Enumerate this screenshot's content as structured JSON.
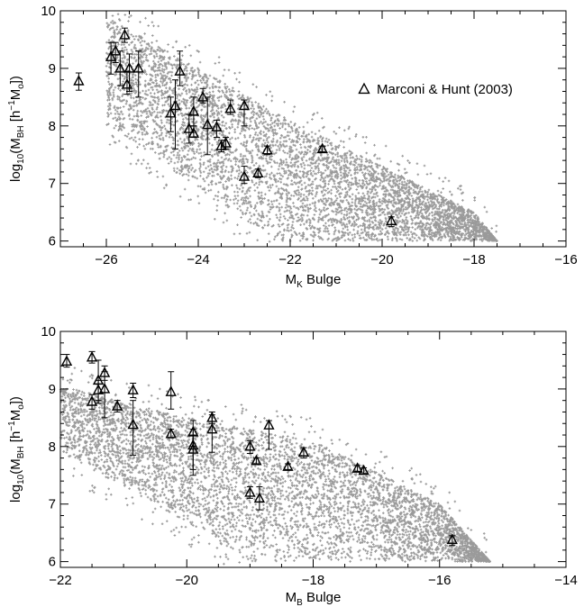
{
  "colors": {
    "model": "#9a9a9a",
    "observed": "#000000",
    "axis": "#000000"
  },
  "chart_data": [
    {
      "type": "scatter",
      "xlabel": "M_K Bulge",
      "ylabel": "log10(M_BH [h^-1 M_o])",
      "xlim": [
        -27,
        -16
      ],
      "ylim": [
        5.9,
        10.0
      ],
      "xticks": [
        -26,
        -24,
        -22,
        -20,
        -18,
        -16
      ],
      "yticks": [
        6,
        7,
        8,
        9,
        10
      ],
      "legend": {
        "position": "right",
        "marker": "triangle",
        "label": "Marconi & Hunt (2003)"
      },
      "model_cloud": {
        "name": "",
        "description_color": "gray",
        "upper_edge": [
          [
            -25.9,
            9.85
          ],
          [
            -22,
            8.1
          ],
          [
            -18,
            6.5
          ],
          [
            -17.5,
            6.0
          ]
        ],
        "lower_edge": [
          [
            -26,
            8.0
          ],
          [
            -24,
            6.9
          ],
          [
            -22.3,
            6.0
          ]
        ]
      },
      "series": [
        {
          "name": "Marconi & Hunt (2003)",
          "points": [
            {
              "x": -26.6,
              "y": 8.78,
              "lo": 8.62,
              "hi": 8.92
            },
            {
              "x": -25.9,
              "y": 9.2,
              "lo": 8.9,
              "hi": 9.45
            },
            {
              "x": -25.8,
              "y": 9.3,
              "lo": 9.1,
              "hi": 9.45
            },
            {
              "x": -25.7,
              "y": 9.0,
              "lo": 8.7,
              "hi": 9.3
            },
            {
              "x": -25.6,
              "y": 9.58,
              "lo": 9.45,
              "hi": 9.7
            },
            {
              "x": -25.55,
              "y": 8.72,
              "lo": 8.55,
              "hi": 8.95
            },
            {
              "x": -25.5,
              "y": 9.0,
              "lo": 8.6,
              "hi": 9.25
            },
            {
              "x": -25.3,
              "y": 9.0,
              "lo": 8.5,
              "hi": 9.3
            },
            {
              "x": -24.6,
              "y": 8.22,
              "lo": 7.9,
              "hi": 8.5
            },
            {
              "x": -24.5,
              "y": 8.35,
              "lo": 7.6,
              "hi": 8.8
            },
            {
              "x": -24.4,
              "y": 8.95,
              "lo": 8.7,
              "hi": 9.3
            },
            {
              "x": -24.2,
              "y": 7.95,
              "lo": 7.7,
              "hi": 8.2
            },
            {
              "x": -24.1,
              "y": 7.87,
              "lo": 7.8,
              "hi": 8.0
            },
            {
              "x": -24.1,
              "y": 8.25,
              "lo": 8.0,
              "hi": 8.5
            },
            {
              "x": -23.9,
              "y": 8.5,
              "lo": 8.4,
              "hi": 8.65
            },
            {
              "x": -23.8,
              "y": 8.02,
              "lo": 7.5,
              "hi": 8.5
            },
            {
              "x": -23.6,
              "y": 7.98,
              "lo": 7.8,
              "hi": 8.1
            },
            {
              "x": -23.5,
              "y": 7.65,
              "lo": 7.55,
              "hi": 7.75
            },
            {
              "x": -23.4,
              "y": 7.7,
              "lo": 7.6,
              "hi": 7.8
            },
            {
              "x": -23.3,
              "y": 8.3,
              "lo": 8.2,
              "hi": 8.45
            },
            {
              "x": -23.0,
              "y": 8.35,
              "lo": 8.0,
              "hi": 8.45
            },
            {
              "x": -23.0,
              "y": 7.12,
              "lo": 7.0,
              "hi": 7.3
            },
            {
              "x": -22.7,
              "y": 7.18,
              "lo": 7.1,
              "hi": 7.25
            },
            {
              "x": -22.5,
              "y": 7.58,
              "lo": 7.5,
              "hi": 7.65
            },
            {
              "x": -21.3,
              "y": 7.6,
              "lo": 7.55,
              "hi": 7.65
            },
            {
              "x": -19.8,
              "y": 6.35,
              "lo": 6.25,
              "hi": 6.42
            }
          ]
        }
      ]
    },
    {
      "type": "scatter",
      "xlabel": "M_B Bulge",
      "ylabel": "log10(M_BH [h^-1 M_o])",
      "xlim": [
        -22,
        -14
      ],
      "ylim": [
        5.9,
        10.0
      ],
      "xticks": [
        -22,
        -20,
        -18,
        -16,
        -14
      ],
      "yticks": [
        6,
        7,
        8,
        9,
        10
      ],
      "model_cloud": {
        "name": "",
        "description_color": "gray",
        "upper_edge": [
          [
            -21.8,
            9.0
          ],
          [
            -20,
            8.5
          ],
          [
            -18,
            8.1
          ],
          [
            -16,
            7.0
          ],
          [
            -15.2,
            6.0
          ]
        ],
        "lower_edge": [
          [
            -22,
            7.9
          ],
          [
            -20.5,
            7.0
          ],
          [
            -19,
            6.0
          ]
        ]
      },
      "series": [
        {
          "name": "Marconi & Hunt (2003)",
          "points": [
            {
              "x": -21.9,
              "y": 9.48,
              "lo": 9.38,
              "hi": 9.6
            },
            {
              "x": -21.5,
              "y": 9.55,
              "lo": 9.45,
              "hi": 9.65
            },
            {
              "x": -21.5,
              "y": 8.78,
              "lo": 8.65,
              "hi": 8.9
            },
            {
              "x": -21.4,
              "y": 9.15,
              "lo": 8.75,
              "hi": 9.5
            },
            {
              "x": -21.4,
              "y": 8.98,
              "lo": 8.8,
              "hi": 9.15
            },
            {
              "x": -21.3,
              "y": 9.28,
              "lo": 9.15,
              "hi": 9.4
            },
            {
              "x": -21.3,
              "y": 9.0,
              "lo": 8.5,
              "hi": 9.3
            },
            {
              "x": -21.1,
              "y": 8.7,
              "lo": 8.6,
              "hi": 8.8
            },
            {
              "x": -20.85,
              "y": 8.98,
              "lo": 8.85,
              "hi": 9.1
            },
            {
              "x": -20.85,
              "y": 8.38,
              "lo": 7.85,
              "hi": 8.8
            },
            {
              "x": -20.25,
              "y": 8.22,
              "lo": 8.15,
              "hi": 8.3
            },
            {
              "x": -20.25,
              "y": 8.95,
              "lo": 8.65,
              "hi": 9.3
            },
            {
              "x": -19.9,
              "y": 8.25,
              "lo": 8.0,
              "hi": 8.45
            },
            {
              "x": -19.9,
              "y": 8.02,
              "lo": 7.5,
              "hi": 8.3
            },
            {
              "x": -19.9,
              "y": 7.95,
              "lo": 7.6,
              "hi": 8.2
            },
            {
              "x": -19.6,
              "y": 8.5,
              "lo": 8.4,
              "hi": 8.6
            },
            {
              "x": -19.6,
              "y": 8.3,
              "lo": 7.9,
              "hi": 8.55
            },
            {
              "x": -19.0,
              "y": 8.0,
              "lo": 7.88,
              "hi": 8.1
            },
            {
              "x": -19.0,
              "y": 7.2,
              "lo": 7.1,
              "hi": 7.3
            },
            {
              "x": -18.9,
              "y": 7.75,
              "lo": 7.7,
              "hi": 7.8
            },
            {
              "x": -18.85,
              "y": 7.1,
              "lo": 6.9,
              "hi": 7.3
            },
            {
              "x": -18.7,
              "y": 8.37,
              "lo": 7.95,
              "hi": 8.45
            },
            {
              "x": -18.4,
              "y": 7.65,
              "lo": 7.6,
              "hi": 7.7
            },
            {
              "x": -18.15,
              "y": 7.9,
              "lo": 7.8,
              "hi": 7.98
            },
            {
              "x": -17.3,
              "y": 7.62,
              "lo": 7.57,
              "hi": 7.67
            },
            {
              "x": -17.2,
              "y": 7.58,
              "lo": 7.53,
              "hi": 7.63
            },
            {
              "x": -15.8,
              "y": 6.38,
              "lo": 6.28,
              "hi": 6.45
            }
          ]
        }
      ]
    }
  ]
}
